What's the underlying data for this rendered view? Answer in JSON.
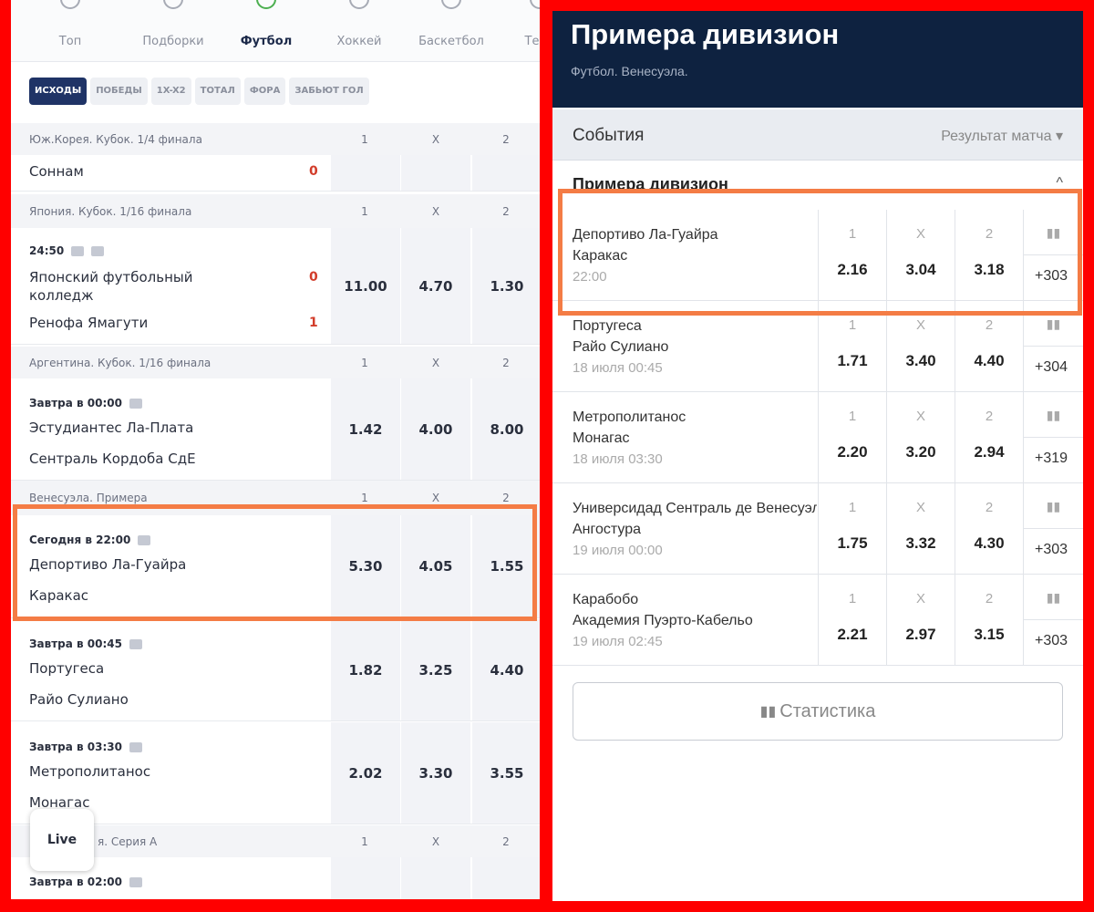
{
  "left": {
    "nav": [
      {
        "label": "Топ",
        "icon": "trophy-icon"
      },
      {
        "label": "Подборки",
        "icon": "bookmark-icon"
      },
      {
        "label": "Футбол",
        "icon": "soccer-ball-icon",
        "active": true
      },
      {
        "label": "Хоккей",
        "icon": "hockey-puck-icon"
      },
      {
        "label": "Баскетбол",
        "icon": "basketball-icon"
      },
      {
        "label": "Тенн",
        "icon": "tennis-icon"
      }
    ],
    "chips": [
      "ИСХОДЫ",
      "ПОБЕДЫ",
      "1X-X2",
      "ТОТАЛ",
      "ФОРА",
      "ЗАБЬЮТ ГОЛ"
    ],
    "cols": [
      "1",
      "X",
      "2"
    ],
    "groups": [
      {
        "title": "Юж.Корея. Кубок. 1/4 финала",
        "matches": [
          {
            "teams": [
              "Соннам"
            ],
            "scores": [
              "0"
            ],
            "odds": [
              "",
              "",
              ""
            ]
          }
        ]
      },
      {
        "title": "Япония. Кубок. 1/16 финала",
        "matches": [
          {
            "time": "24:50",
            "teams": [
              "Японский футбольный колледж",
              "Ренофа Ямагути"
            ],
            "scores": [
              "0",
              "1"
            ],
            "odds": [
              "11.00",
              "4.70",
              "1.30"
            ]
          }
        ]
      },
      {
        "title": "Аргентина. Кубок. 1/16 финала",
        "matches": [
          {
            "time": "Завтра в 00:00",
            "teams": [
              "Эстудиантес Ла-Плата",
              "Сентраль Кордоба СдЕ"
            ],
            "odds": [
              "1.42",
              "4.00",
              "8.00"
            ]
          }
        ]
      },
      {
        "title": "Венесуэла. Примера",
        "matches": [
          {
            "time": "Сегодня в 22:00",
            "teams": [
              "Депортиво Ла-Гуайра",
              "Каракас"
            ],
            "odds": [
              "5.30",
              "4.05",
              "1.55"
            ]
          },
          {
            "time": "Завтра в 00:45",
            "teams": [
              "Португеса",
              "Райо Сулиано"
            ],
            "odds": [
              "1.82",
              "3.25",
              "4.40"
            ]
          },
          {
            "time": "Завтра в 03:30",
            "teams": [
              "Метрополитанос",
              "Монагас"
            ],
            "odds": [
              "2.02",
              "3.30",
              "3.55"
            ]
          }
        ]
      },
      {
        "title": "я. Серия А",
        "matches": [
          {
            "time": "Завтра в 02:00"
          }
        ]
      }
    ],
    "live_label": "Live"
  },
  "right": {
    "title": "Примера дивизион",
    "subtitle": "Футбол. Венесуэла.",
    "events_label": "События",
    "market_select": "Результат матча",
    "section": "Примера дивизион",
    "cols": [
      "1",
      "X",
      "2"
    ],
    "matches": [
      {
        "teams": [
          "Депортиво Ла-Гуайра",
          "Каракас"
        ],
        "time": "22:00",
        "odds": [
          "2.16",
          "3.04",
          "3.18"
        ],
        "more": "+303"
      },
      {
        "teams": [
          "Португеса",
          "Райо Сулиано"
        ],
        "time": "18 июля 00:45",
        "odds": [
          "1.71",
          "3.40",
          "4.40"
        ],
        "more": "+304"
      },
      {
        "teams": [
          "Метрополитанос",
          "Монагас"
        ],
        "time": "18 июля 03:30",
        "odds": [
          "2.20",
          "3.20",
          "2.94"
        ],
        "more": "+319"
      },
      {
        "teams": [
          "Универсидад Сентраль де Венесуэла",
          "Ангостура"
        ],
        "time": "19 июля 00:00",
        "odds": [
          "1.75",
          "3.32",
          "4.30"
        ],
        "more": "+303"
      },
      {
        "teams": [
          "Карабобо",
          "Академия Пуэрто-Кабельо"
        ],
        "time": "19 июля 02:45",
        "odds": [
          "2.21",
          "2.97",
          "3.15"
        ],
        "more": "+303"
      }
    ],
    "stats_button": "Статистика"
  },
  "colors": {
    "highlight": "#f47c45",
    "frame": "#ff0000",
    "header": "#0e2240",
    "chip_active": "#1f3366",
    "score": "#d23c2a"
  }
}
